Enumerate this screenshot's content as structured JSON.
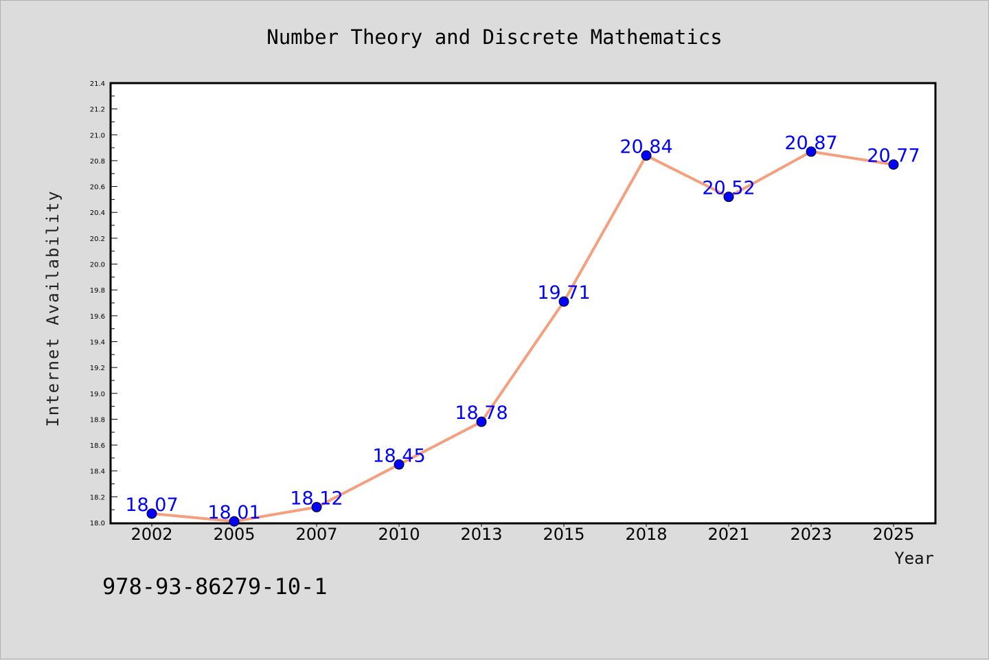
{
  "chart_data": {
    "type": "line",
    "title": "Number Theory and Discrete Mathematics",
    "xlabel": "Year",
    "ylabel": "Internet Availability",
    "categories": [
      "2002",
      "2005",
      "2007",
      "2010",
      "2013",
      "2015",
      "2018",
      "2021",
      "2023",
      "2025"
    ],
    "series": [
      {
        "values": [
          18.07,
          18.01,
          18.12,
          18.45,
          18.78,
          19.71,
          20.84,
          20.52,
          20.87,
          20.77
        ],
        "data_labels": [
          "18.07",
          "18.01",
          "18.12",
          "18.45",
          "18.78",
          "19.71",
          "20.84",
          "20.52",
          "20.87",
          "20.77"
        ],
        "line_color": "#f4a07f",
        "marker_color": "#0000ff"
      }
    ],
    "ylim": [
      18.0,
      21.4
    ],
    "yticks": [
      "18.0",
      "18.2",
      "18.4",
      "18.6",
      "18.8",
      "19.0",
      "19.2",
      "19.4",
      "19.6",
      "19.8",
      "20.0",
      "20.2",
      "20.4",
      "20.6",
      "20.8",
      "21.0",
      "21.2",
      "21.4"
    ],
    "grid": false,
    "legend": "none"
  },
  "footnote": "978-93-86279-10-1",
  "colors": {
    "background": "#dcdcdc",
    "plot_background": "#ffffff",
    "label_color": "#0000ff"
  }
}
